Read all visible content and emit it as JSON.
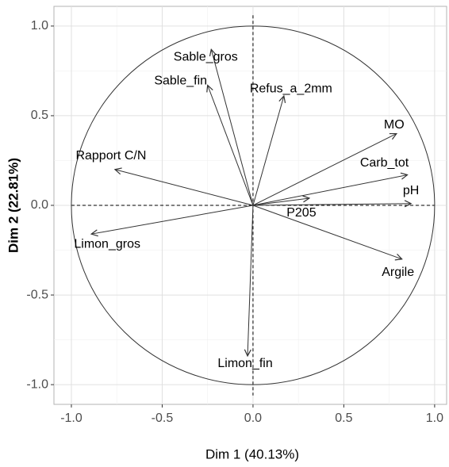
{
  "chart_data": {
    "type": "biplot",
    "xlabel": "Dim 1 (40.13%)",
    "ylabel": "Dim 2 (22.81%)",
    "xlim": [
      -1.096,
      1.066
    ],
    "ylim": [
      -1.11,
      1.11
    ],
    "xticks": [
      {
        "value": -1,
        "label": "-1.0"
      },
      -0.5,
      {
        "value": 0,
        "label": "0.0"
      },
      0.5,
      {
        "value": 1,
        "label": "1.0"
      }
    ],
    "yticks": [
      {
        "value": -1,
        "label": "-1.0"
      },
      -0.5,
      {
        "value": 0,
        "label": "0.0"
      },
      0.5,
      {
        "value": 1,
        "label": "1.0"
      }
    ],
    "grid": true,
    "color": "#333333",
    "variables": [
      "Sable_gros",
      "Sable_fin",
      "Refus_a_2mm",
      "MO",
      "Carb_tot",
      "pH",
      "P205",
      "Argile",
      "Limon_fin",
      "Limon_gros",
      "Rapport C/N"
    ],
    "x": [
      -0.23,
      -0.25,
      0.17,
      0.79,
      0.85,
      0.87,
      0.31,
      0.82,
      -0.03,
      -0.89,
      -0.76
    ],
    "values": [
      0.87,
      0.67,
      0.61,
      0.4,
      0.17,
      0.01,
      0.04,
      -0.3,
      -0.84,
      -0.16,
      0.2
    ]
  }
}
